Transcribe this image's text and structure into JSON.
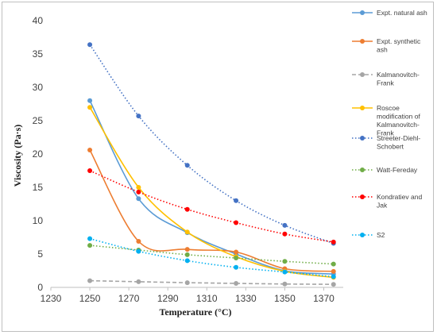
{
  "chart_data": {
    "type": "line",
    "xlabel": "Temperature (°C)",
    "ylabel": "Viscosity (Pa·s)",
    "xlim": [
      1230,
      1380
    ],
    "ylim": [
      0,
      40
    ],
    "xticks": [
      1230,
      1250,
      1270,
      1290,
      1310,
      1330,
      1350,
      1370
    ],
    "yticks": [
      0,
      5,
      10,
      15,
      20,
      25,
      30,
      35,
      40
    ],
    "grid": false,
    "legend_position": "right",
    "x": [
      1250,
      1275,
      1300,
      1325,
      1350,
      1375
    ],
    "series": [
      {
        "name": "Expt. natural ash",
        "color": "#5b9bd5",
        "dash": "solid",
        "smooth": true,
        "values": [
          28.0,
          13.3,
          8.2,
          5.0,
          2.5,
          2.0
        ]
      },
      {
        "name": "Expt. synthetic ash",
        "color": "#ed7d31",
        "dash": "solid",
        "smooth": true,
        "values": [
          20.6,
          6.9,
          5.7,
          5.3,
          2.8,
          2.4
        ]
      },
      {
        "name": "Kalmanovitch-Frank",
        "color": "#a5a5a5",
        "dash": "dashed",
        "smooth": false,
        "values": [
          1.0,
          0.85,
          0.7,
          0.6,
          0.5,
          0.45
        ]
      },
      {
        "name": "Roscoe modification of Kalmanovitch-Frank",
        "color": "#ffc000",
        "dash": "solid",
        "smooth": true,
        "values": [
          27.0,
          15.0,
          8.3,
          4.6,
          2.4,
          1.5
        ]
      },
      {
        "name": "Streeter-Diehl-Schobert",
        "color": "#4472c4",
        "dash": "dotted",
        "smooth": true,
        "values": [
          36.4,
          25.7,
          18.3,
          13.0,
          9.3,
          6.6
        ]
      },
      {
        "name": "Watt-Fereday",
        "color": "#70ad47",
        "dash": "dotted",
        "smooth": true,
        "values": [
          6.3,
          5.6,
          4.9,
          4.4,
          3.9,
          3.5
        ]
      },
      {
        "name": "Kondratiev and Jak",
        "color": "#ff0000",
        "dash": "dotted",
        "smooth": true,
        "values": [
          17.5,
          14.3,
          11.7,
          9.7,
          8.0,
          6.8
        ]
      },
      {
        "name": "S2",
        "color": "#00b0f0",
        "dash": "dotted",
        "smooth": true,
        "values": [
          7.3,
          5.4,
          4.0,
          3.0,
          2.3,
          1.6
        ]
      }
    ]
  },
  "legend_lines": [
    [
      "Expt. natural ash"
    ],
    [
      "Expt. synthetic",
      "ash"
    ],
    [
      "Kalmanovitch-",
      "Frank"
    ],
    [
      "Roscoe",
      "modification of",
      "Kalmanovitch-",
      "Frank"
    ],
    [
      "Streeter-Diehl-",
      "Schobert"
    ],
    [
      "Watt-Fereday"
    ],
    [
      "Kondratiev and",
      "Jak"
    ],
    [
      "S2"
    ]
  ]
}
